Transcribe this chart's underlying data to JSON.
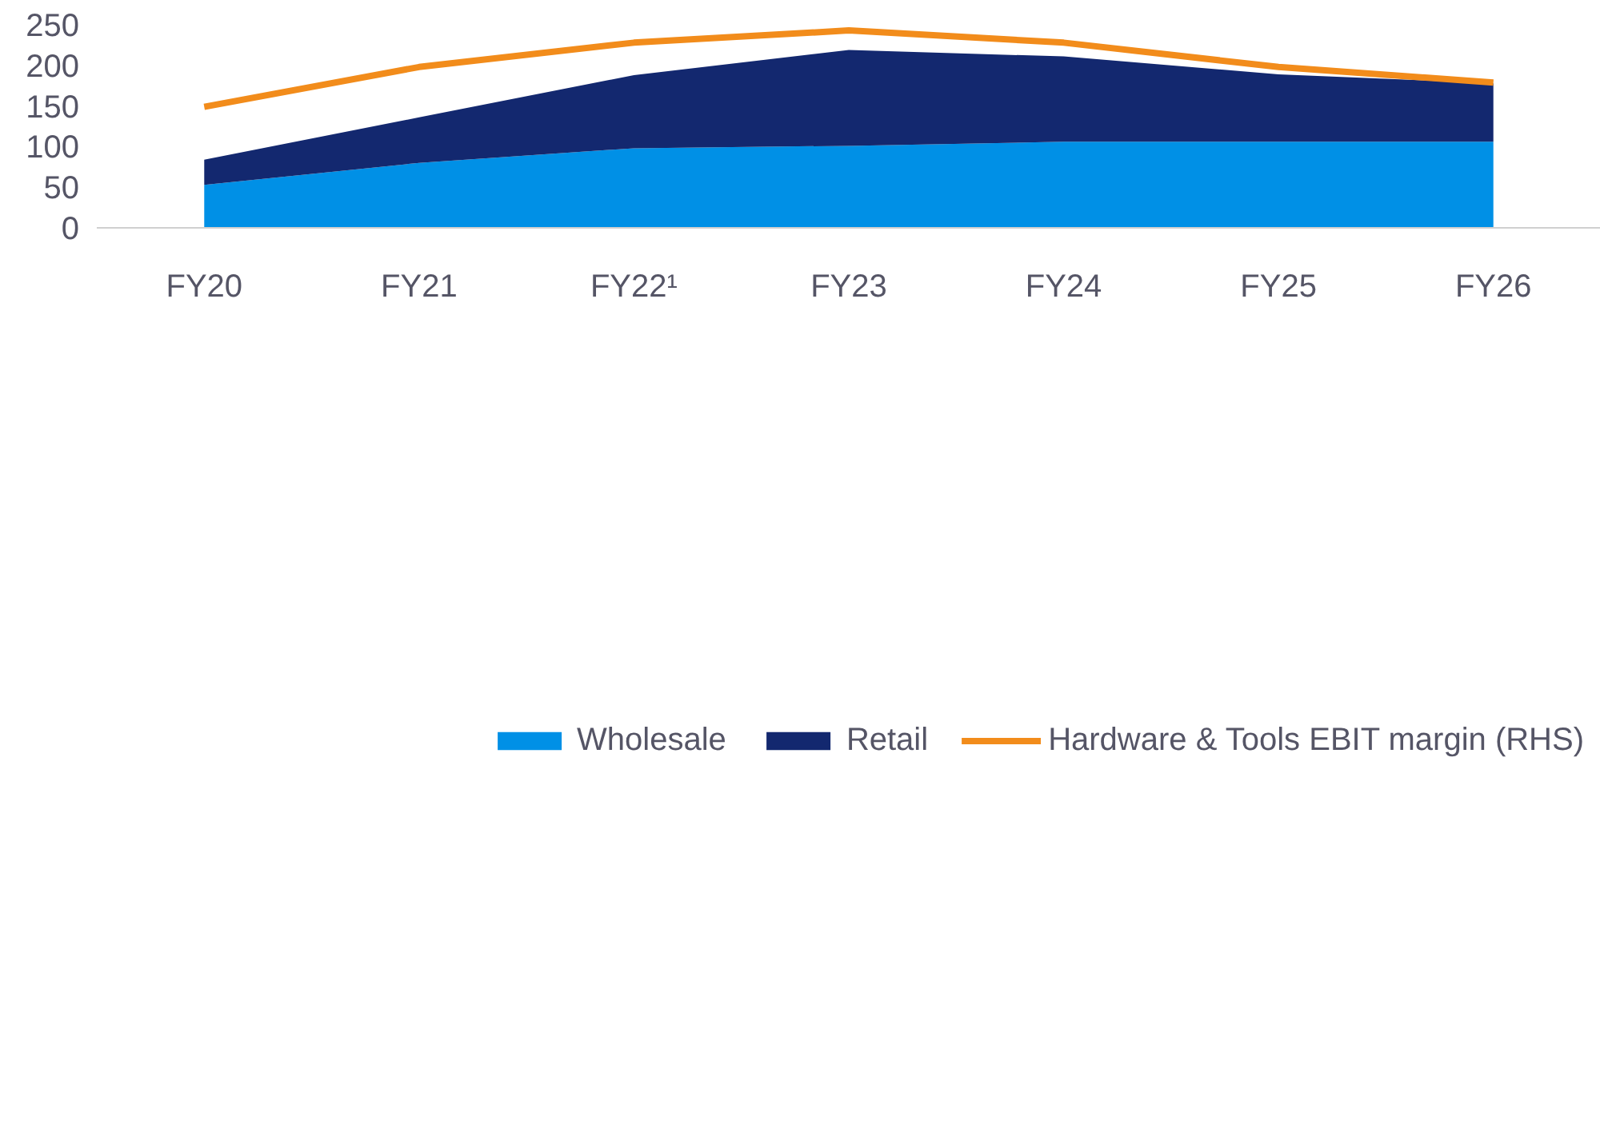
{
  "chart_data": {
    "type": "area",
    "stacked": true,
    "categories": [
      "FY20",
      "FY21",
      "FY22¹",
      "FY23",
      "FY24",
      "FY25",
      "FY26"
    ],
    "series": [
      {
        "name": "Wholesale",
        "color": "#0090e6",
        "values": [
          53,
          80,
          98,
          101,
          106,
          106,
          106
        ]
      },
      {
        "name": "Retail",
        "color": "#13286f",
        "values": [
          31,
          56,
          90,
          118,
          105,
          83,
          72
        ]
      },
      {
        "name": "Hardware & Tools EBIT margin (RHS)",
        "type": "line",
        "color": "#f28c1b",
        "values": [
          149,
          198,
          228,
          243,
          228,
          198,
          179
        ]
      }
    ],
    "ylim": [
      0,
      250
    ],
    "yticks": [
      0,
      50,
      100,
      150,
      200,
      250
    ],
    "grid": false,
    "legend": "bottom"
  }
}
